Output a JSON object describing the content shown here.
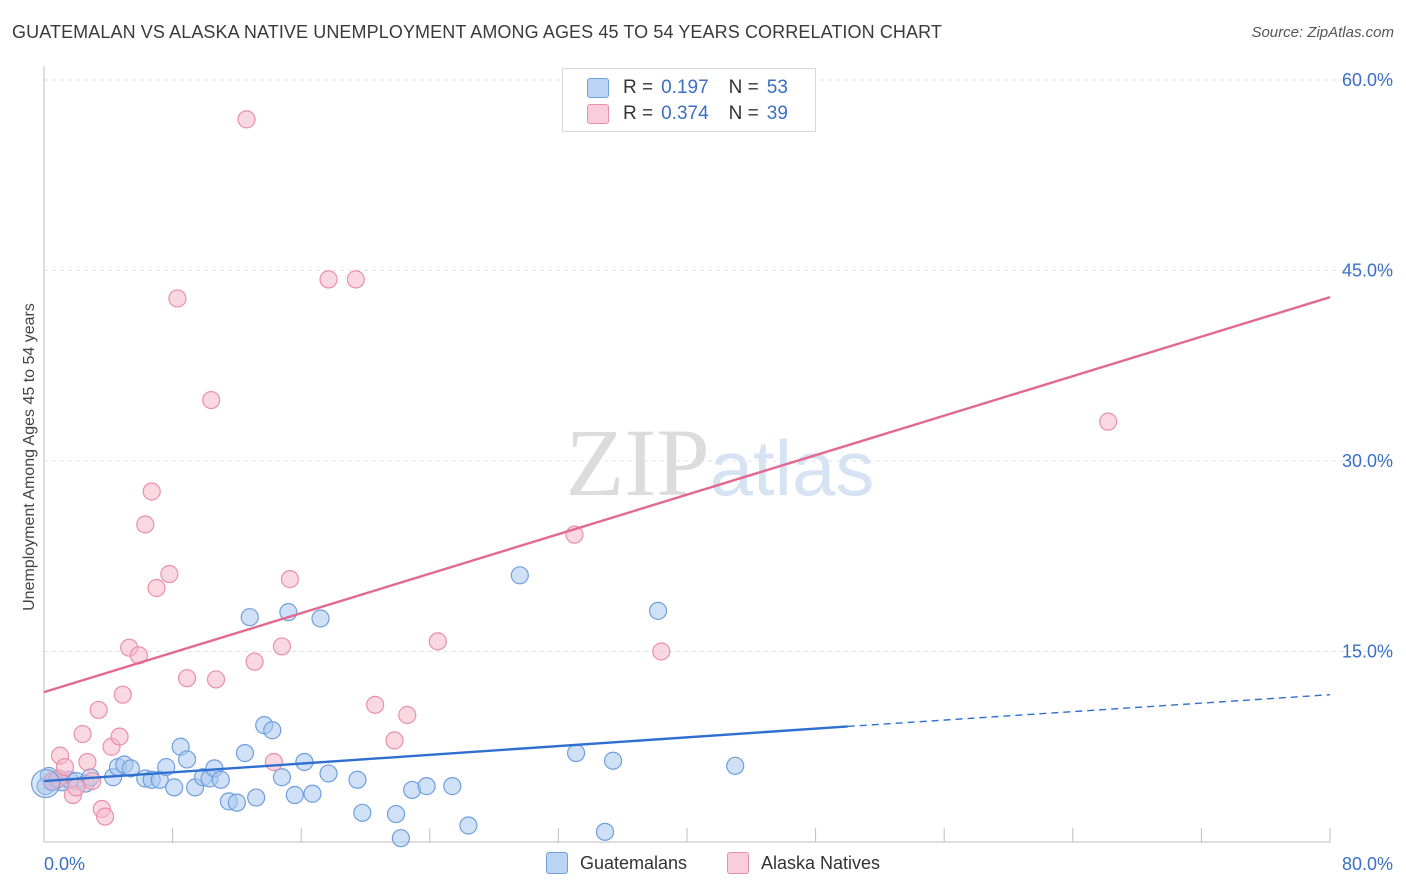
{
  "title": "GUATEMALAN VS ALASKA NATIVE UNEMPLOYMENT AMONG AGES 45 TO 54 YEARS CORRELATION CHART",
  "source": "Source: ZipAtlas.com",
  "watermark": {
    "zip": "ZIP",
    "atlas": "atlas"
  },
  "colors": {
    "blue_fill": "#a9c8f0",
    "blue_stroke": "#6f9fdc",
    "blue_line": "#2f6fd0",
    "pink_fill": "#f6b8cb",
    "pink_stroke": "#ea8fab",
    "pink_line": "#e2698f",
    "axis_label": "#3a6fc4",
    "grid": "#e3e3e3"
  },
  "legend_top": {
    "rows": [
      {
        "series": "Guatemalans",
        "r_label": "R =",
        "r_value": "0.197",
        "n_label": "N =",
        "n_value": "53"
      },
      {
        "series": "Alaska Natives",
        "r_label": "R =",
        "r_value": "0.374",
        "n_label": "N =",
        "n_value": "39"
      }
    ]
  },
  "legend_bottom": [
    "Guatemalans",
    "Alaska Natives"
  ],
  "chart_data": {
    "type": "scatter",
    "title": "GUATEMALAN VS ALASKA NATIVE UNEMPLOYMENT AMONG AGES 45 TO 54 YEARS CORRELATION CHART",
    "xlabel": "",
    "ylabel": "Unemployment Among Ages 45 to 54 years",
    "xlim": [
      0,
      80
    ],
    "ylim": [
      0,
      60
    ],
    "x_tick_labels": [
      "0.0%",
      "80.0%"
    ],
    "y_ticks": [
      15,
      30,
      45,
      60
    ],
    "y_tick_labels": [
      "15.0%",
      "30.0%",
      "45.0%",
      "60.0%"
    ],
    "grid": true,
    "series": [
      {
        "name": "Guatemalans",
        "points": [
          [
            0.1,
            4.4
          ],
          [
            0.3,
            5.2
          ],
          [
            0.5,
            4.7
          ],
          [
            0.8,
            4.9
          ],
          [
            1.1,
            4.7
          ],
          [
            1.6,
            4.9
          ],
          [
            2.0,
            4.8
          ],
          [
            2.6,
            4.6
          ],
          [
            2.9,
            5.1
          ],
          [
            4.3,
            5.1
          ],
          [
            4.6,
            5.9
          ],
          [
            5.0,
            6.1
          ],
          [
            5.4,
            5.8
          ],
          [
            6.3,
            5.0
          ],
          [
            6.7,
            4.9
          ],
          [
            7.2,
            4.9
          ],
          [
            7.6,
            5.9
          ],
          [
            8.1,
            4.3
          ],
          [
            8.5,
            7.5
          ],
          [
            8.9,
            6.5
          ],
          [
            9.4,
            4.3
          ],
          [
            9.9,
            5.1
          ],
          [
            10.3,
            5.0
          ],
          [
            10.6,
            5.8
          ],
          [
            11.0,
            4.9
          ],
          [
            11.5,
            3.2
          ],
          [
            12.0,
            3.1
          ],
          [
            12.5,
            7.0
          ],
          [
            12.8,
            17.7
          ],
          [
            13.2,
            3.5
          ],
          [
            13.7,
            9.2
          ],
          [
            14.2,
            8.8
          ],
          [
            14.8,
            5.1
          ],
          [
            15.2,
            18.1
          ],
          [
            15.6,
            3.7
          ],
          [
            16.2,
            6.3
          ],
          [
            16.7,
            3.8
          ],
          [
            17.2,
            17.6
          ],
          [
            17.7,
            5.4
          ],
          [
            19.5,
            4.9
          ],
          [
            19.8,
            2.3
          ],
          [
            21.9,
            2.2
          ],
          [
            22.2,
            0.3
          ],
          [
            22.9,
            4.1
          ],
          [
            23.8,
            4.4
          ],
          [
            25.4,
            4.4
          ],
          [
            26.4,
            1.3
          ],
          [
            29.6,
            21.0
          ],
          [
            33.1,
            7.0
          ],
          [
            34.9,
            0.8
          ],
          [
            35.4,
            6.4
          ],
          [
            38.2,
            18.2
          ],
          [
            43.0,
            6.0
          ]
        ],
        "trend": {
          "x": [
            0,
            50
          ],
          "y": [
            4.8,
            9.1
          ],
          "dashed_extension": {
            "x": [
              50,
              80
            ],
            "y": [
              9.1,
              11.6
            ]
          }
        }
      },
      {
        "name": "Alaska Natives",
        "points": [
          [
            0.5,
            4.8
          ],
          [
            0.9,
            5.0
          ],
          [
            1.0,
            6.8
          ],
          [
            1.3,
            5.9
          ],
          [
            1.8,
            3.7
          ],
          [
            2.0,
            4.3
          ],
          [
            2.4,
            8.5
          ],
          [
            2.7,
            6.3
          ],
          [
            3.0,
            4.8
          ],
          [
            3.4,
            10.4
          ],
          [
            3.6,
            2.6
          ],
          [
            3.8,
            2.0
          ],
          [
            4.2,
            7.5
          ],
          [
            4.7,
            8.3
          ],
          [
            4.9,
            11.6
          ],
          [
            5.3,
            15.3
          ],
          [
            5.9,
            14.7
          ],
          [
            6.3,
            25.0
          ],
          [
            6.7,
            27.6
          ],
          [
            7.0,
            20.0
          ],
          [
            7.8,
            21.1
          ],
          [
            8.3,
            42.8
          ],
          [
            8.9,
            12.9
          ],
          [
            10.4,
            34.8
          ],
          [
            10.7,
            12.8
          ],
          [
            12.6,
            56.9
          ],
          [
            13.1,
            14.2
          ],
          [
            14.3,
            6.3
          ],
          [
            14.8,
            15.4
          ],
          [
            15.3,
            20.7
          ],
          [
            17.7,
            44.3
          ],
          [
            19.4,
            44.3
          ],
          [
            20.6,
            10.8
          ],
          [
            21.8,
            8.0
          ],
          [
            22.6,
            10.0
          ],
          [
            24.5,
            15.8
          ],
          [
            33.0,
            24.2
          ],
          [
            38.4,
            15.0
          ],
          [
            66.2,
            33.1
          ]
        ],
        "trend": {
          "x": [
            0,
            80
          ],
          "y": [
            11.8,
            42.9
          ]
        }
      }
    ]
  }
}
